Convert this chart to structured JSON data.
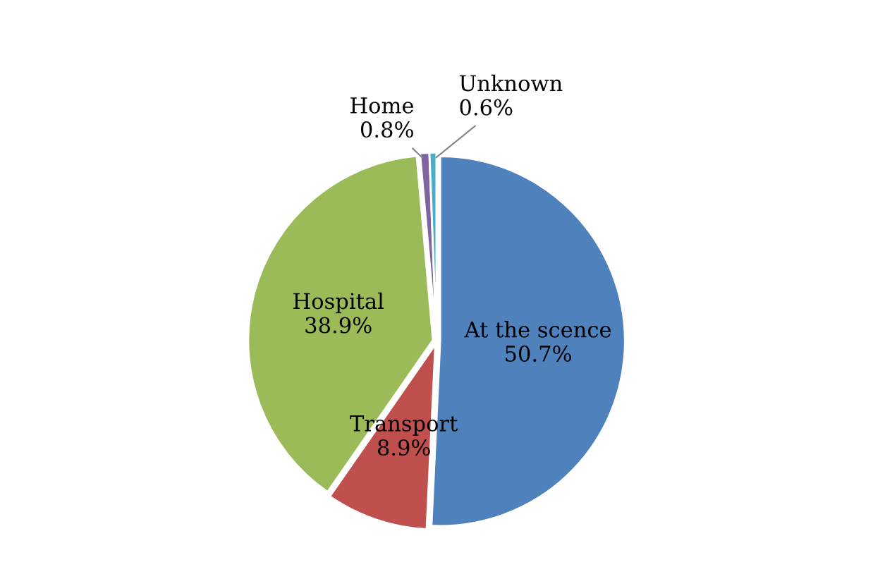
{
  "chart_data": {
    "type": "pie",
    "categories": [
      "At the scence",
      "Transport",
      "Hospital",
      "Home",
      "Unknown"
    ],
    "values": [
      50.7,
      8.9,
      38.9,
      0.8,
      0.6
    ],
    "value_labels": [
      "50.7%",
      "8.9%",
      "38.9%",
      "0.8%",
      "0.6%"
    ],
    "colors": [
      "#4f81bd",
      "#c0504d",
      "#9bbb59",
      "#8064a2",
      "#4bacc6"
    ],
    "legend": false
  }
}
